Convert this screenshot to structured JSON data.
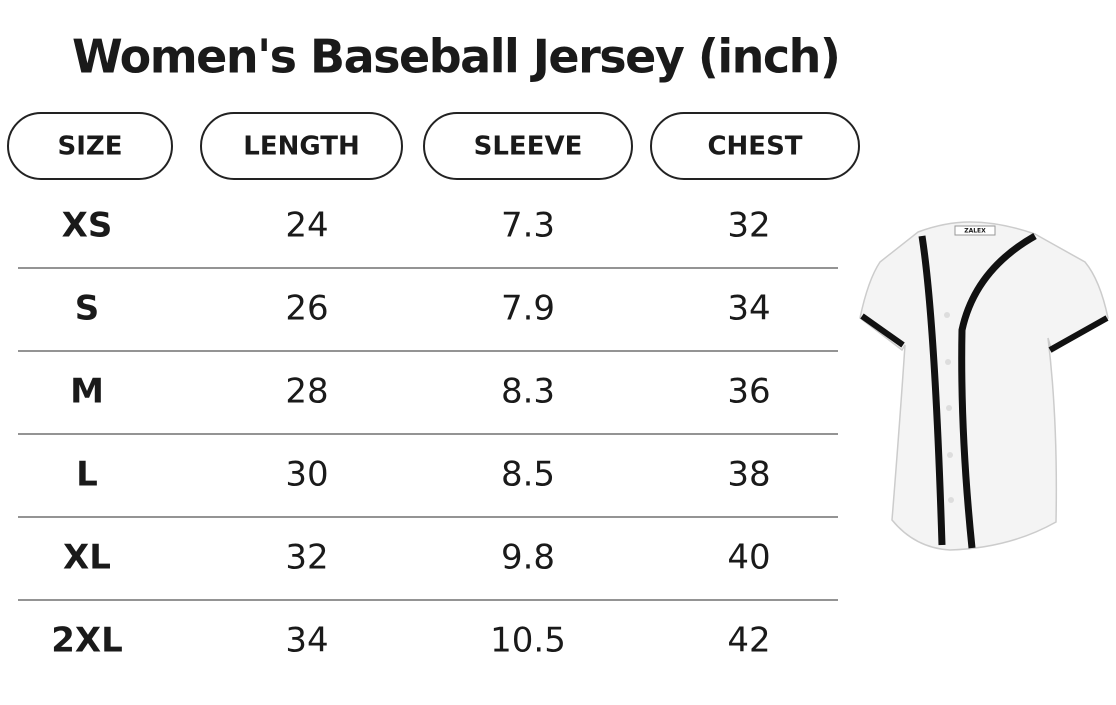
{
  "header": {
    "title": "Women's Baseball Jersey (inch)"
  },
  "table": {
    "columns": [
      "SIZE",
      "LENGTH",
      "SLEEVE",
      "CHEST"
    ],
    "rows": [
      [
        "XS",
        24,
        7.3,
        32
      ],
      [
        "S",
        26,
        7.9,
        34
      ],
      [
        "M",
        28,
        8.3,
        36
      ],
      [
        "L",
        30,
        8.5,
        38
      ],
      [
        "XL",
        32,
        9.8,
        40
      ],
      [
        "2XL",
        34,
        10.5,
        42
      ]
    ]
  },
  "jersey": {
    "tag": "ZALEX"
  }
}
